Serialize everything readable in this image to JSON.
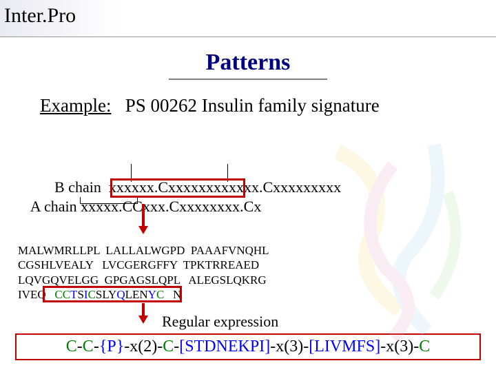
{
  "logo": {
    "text": "Inter.Pro"
  },
  "title": {
    "text": "Patterns",
    "color": "#000080",
    "fontsize": 34,
    "underline_color": "#808080"
  },
  "example": {
    "label": "Example:",
    "text": "PS 00262 Insulin family signature",
    "fontsize": 27
  },
  "chains": {
    "b_label": "B chain  ",
    "b_seq": "xxxxxx.Cxxxxxxxxxxxx.Cxxxxxxxxx",
    "a_label": "A chain ",
    "a_seq": "xxxxx.CCxxx.Cxxxxxxxx.Cx",
    "fontsize": 22,
    "highlight_box": {
      "color": "#c00000",
      "border_width": 3
    }
  },
  "connectors": {
    "color": "#000000",
    "pairs": [
      {
        "from": "B-C1",
        "to": "A-C2"
      },
      {
        "from": "B-C2",
        "to": "A-C4"
      }
    ]
  },
  "sequence": {
    "fontsize": 17,
    "rows": [
      "MALWMRLLPL  LALLALWGPD  PAAAFVNQHL",
      "CGSHLVEALY   LVCGERGFFY  TPKTRREAED",
      "LQVGQVELGG  GPGAGSLQPL   ALEGSLQKRG",
      "IVEQ   CCTSICSLYQLENYC   N"
    ],
    "highlight_row_index": 3,
    "highlight_segment": "CCTSICSLYQLENYC",
    "highlight_colors": {
      "C_positions_green": [
        0,
        1,
        5,
        14
      ],
      "other_bracket_letters_blue": [
        2,
        4,
        9,
        13
      ]
    }
  },
  "arrows": {
    "color": "#c00000",
    "stem_width": 4
  },
  "regex": {
    "label": "Regular expression",
    "label_fontsize": 22,
    "box_border_color": "#c00000",
    "fontsize": 24,
    "tokens": [
      {
        "t": "C",
        "c": "#008000"
      },
      {
        "t": "-"
      },
      {
        "t": "C",
        "c": "#008000"
      },
      {
        "t": "-"
      },
      {
        "t": "{",
        "c": "#0000ff"
      },
      {
        "t": "P",
        "c": "#0000ff"
      },
      {
        "t": "}",
        "c": "#0000ff"
      },
      {
        "t": "-x(2)-"
      },
      {
        "t": "C",
        "c": "#008000"
      },
      {
        "t": "-"
      },
      {
        "t": "[",
        "c": "#0000ff"
      },
      {
        "t": "STDNEKPI",
        "c": "#0000ff"
      },
      {
        "t": "]",
        "c": "#0000ff"
      },
      {
        "t": "-x(3)-"
      },
      {
        "t": "[",
        "c": "#0000ff"
      },
      {
        "t": "LIVMFS",
        "c": "#0000ff"
      },
      {
        "t": "]",
        "c": "#0000ff"
      },
      {
        "t": "-x(3)-"
      },
      {
        "t": "C",
        "c": "#008000"
      }
    ]
  },
  "watermark": {
    "opacity": 0.18,
    "ribbons": [
      {
        "color": "#f7d968"
      },
      {
        "color": "#9ed3e8"
      },
      {
        "color": "#e89bc0"
      },
      {
        "color": "#a7e29b"
      }
    ]
  }
}
